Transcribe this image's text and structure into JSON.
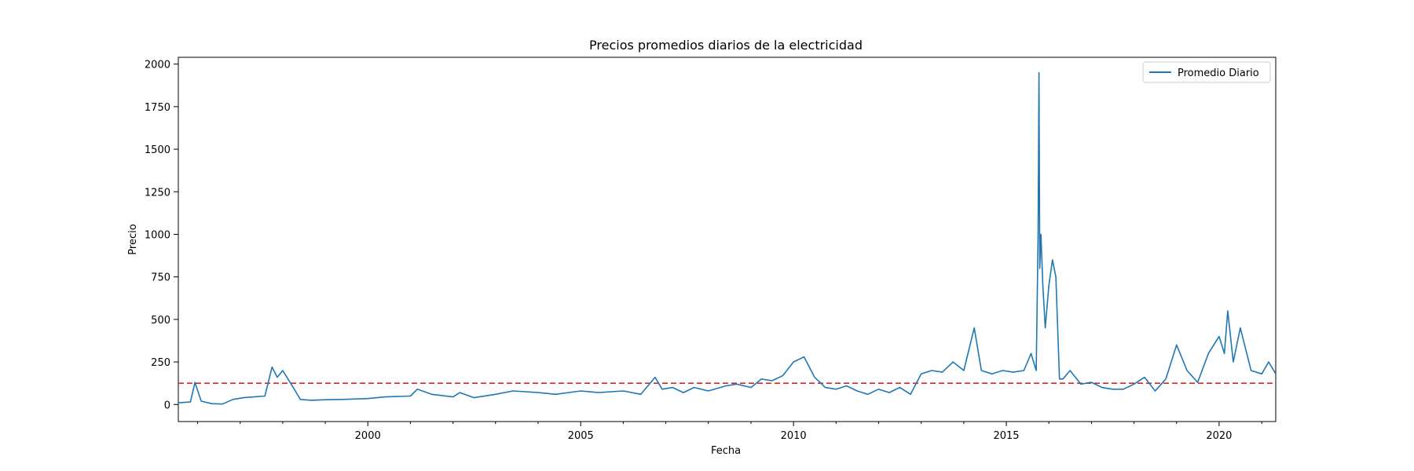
{
  "chart_data": {
    "type": "line",
    "title": "Precios promedios diarios de la electricidad",
    "xlabel": "Fecha",
    "ylabel": "Precio",
    "xlim": [
      "1995-07-20",
      "2021-05-01"
    ],
    "ylim": [
      -100,
      2040
    ],
    "x_ticks": [
      "2000",
      "2005",
      "2010",
      "2015",
      "2020"
    ],
    "y_ticks": [
      0,
      250,
      500,
      750,
      1000,
      1250,
      1500,
      1750,
      2000
    ],
    "grid": false,
    "legend": {
      "position": "top-right",
      "entries": [
        "Promedio Diario"
      ]
    },
    "reference_line": {
      "value": 125,
      "color": "#d62728",
      "style": "dashed"
    },
    "series": [
      {
        "name": "Promedio Diario",
        "color": "#1f77b4",
        "x": [
          "1995-07-20",
          "1995-11-01",
          "1995-12-10",
          "1996-02-01",
          "1996-05-01",
          "1996-08-01",
          "1996-11-01",
          "1997-02-01",
          "1997-05-01",
          "1997-08-01",
          "1997-10-01",
          "1997-11-15",
          "1998-01-01",
          "1998-02-15",
          "1998-04-01",
          "1998-06-01",
          "1998-09-01",
          "1999-01-01",
          "1999-06-01",
          "2000-01-01",
          "2000-06-01",
          "2001-01-01",
          "2001-03-01",
          "2001-07-01",
          "2002-01-01",
          "2002-03-01",
          "2002-07-01",
          "2003-01-01",
          "2003-06-01",
          "2004-01-01",
          "2004-06-01",
          "2005-01-01",
          "2005-06-01",
          "2006-01-01",
          "2006-06-01",
          "2006-10-01",
          "2006-12-01",
          "2007-03-01",
          "2007-06-01",
          "2007-09-01",
          "2008-01-01",
          "2008-06-01",
          "2008-09-01",
          "2009-01-01",
          "2009-04-01",
          "2009-07-01",
          "2009-10-01",
          "2010-01-01",
          "2010-04-01",
          "2010-07-01",
          "2010-10-01",
          "2011-01-01",
          "2011-04-01",
          "2011-07-01",
          "2011-10-01",
          "2012-01-01",
          "2012-04-01",
          "2012-07-01",
          "2012-10-01",
          "2013-01-01",
          "2013-04-01",
          "2013-07-01",
          "2013-10-01",
          "2014-01-01",
          "2014-04-01",
          "2014-06-01",
          "2014-09-01",
          "2014-12-01",
          "2015-03-01",
          "2015-06-01",
          "2015-08-01",
          "2015-09-15",
          "2015-10-01",
          "2015-10-08",
          "2015-10-15",
          "2015-10-25",
          "2015-11-10",
          "2015-12-01",
          "2016-01-01",
          "2016-02-01",
          "2016-03-01",
          "2016-04-01",
          "2016-05-01",
          "2016-07-01",
          "2016-10-01",
          "2017-01-01",
          "2017-04-01",
          "2017-07-01",
          "2017-10-01",
          "2018-01-01",
          "2018-04-01",
          "2018-07-01",
          "2018-10-01",
          "2019-01-01",
          "2019-04-01",
          "2019-07-01",
          "2019-10-01",
          "2020-01-01",
          "2020-02-15",
          "2020-03-15",
          "2020-05-01",
          "2020-07-01",
          "2020-10-01",
          "2021-01-01",
          "2021-03-01",
          "2021-05-01"
        ],
        "y": [
          10,
          15,
          130,
          20,
          5,
          3,
          30,
          40,
          45,
          50,
          220,
          160,
          200,
          150,
          100,
          30,
          25,
          28,
          30,
          35,
          45,
          50,
          90,
          60,
          45,
          70,
          40,
          60,
          80,
          70,
          60,
          80,
          70,
          80,
          60,
          160,
          90,
          100,
          70,
          100,
          80,
          110,
          120,
          100,
          150,
          140,
          170,
          250,
          280,
          160,
          100,
          90,
          110,
          80,
          60,
          90,
          70,
          100,
          60,
          180,
          200,
          190,
          250,
          200,
          450,
          200,
          180,
          200,
          190,
          200,
          300,
          200,
          1000,
          1950,
          800,
          1000,
          700,
          450,
          700,
          850,
          750,
          150,
          150,
          200,
          120,
          130,
          100,
          90,
          90,
          120,
          160,
          80,
          150,
          350,
          200,
          130,
          300,
          400,
          300,
          550,
          250,
          450,
          200,
          180,
          250,
          180
        ]
      }
    ]
  }
}
